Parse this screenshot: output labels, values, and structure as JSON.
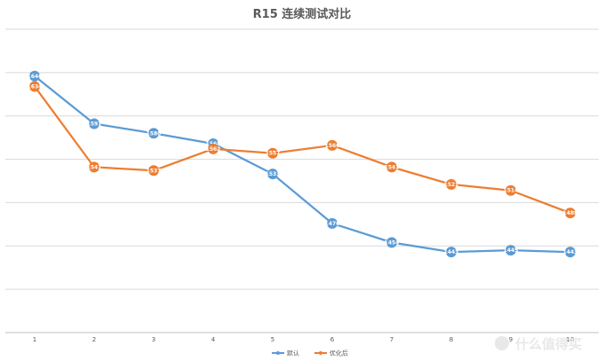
{
  "chart_data": {
    "type": "line",
    "title": "R15 连续测试对比",
    "categories": [
      "1",
      "2",
      "3",
      "4",
      "5",
      "6",
      "7",
      "8",
      "9",
      "10"
    ],
    "series": [
      {
        "name": "默认",
        "color": "#5b9bd5",
        "values": [
          1646,
          1591,
          1580,
          1568,
          1533,
          1476,
          1454,
          1443,
          1445,
          1443
        ],
        "labels": [
          "1646",
          "1591",
          "1580",
          "1568",
          "1533",
          "1476",
          "1454",
          "1443",
          "1445",
          "1443"
        ]
      },
      {
        "name": "优化后",
        "color": "#ed7d31",
        "values": [
          1634,
          1541,
          1537,
          1562,
          1557,
          1566,
          1541,
          1521,
          1514,
          1488
        ],
        "labels": [
          "1634",
          "1541",
          "1537",
          "1562",
          "1557",
          "1566",
          "1541",
          "1521",
          "1514",
          "1488"
        ]
      }
    ],
    "ylim": [
      1350,
      1700
    ],
    "grid": true,
    "legend": "bottom"
  },
  "watermark": "什么值得买"
}
